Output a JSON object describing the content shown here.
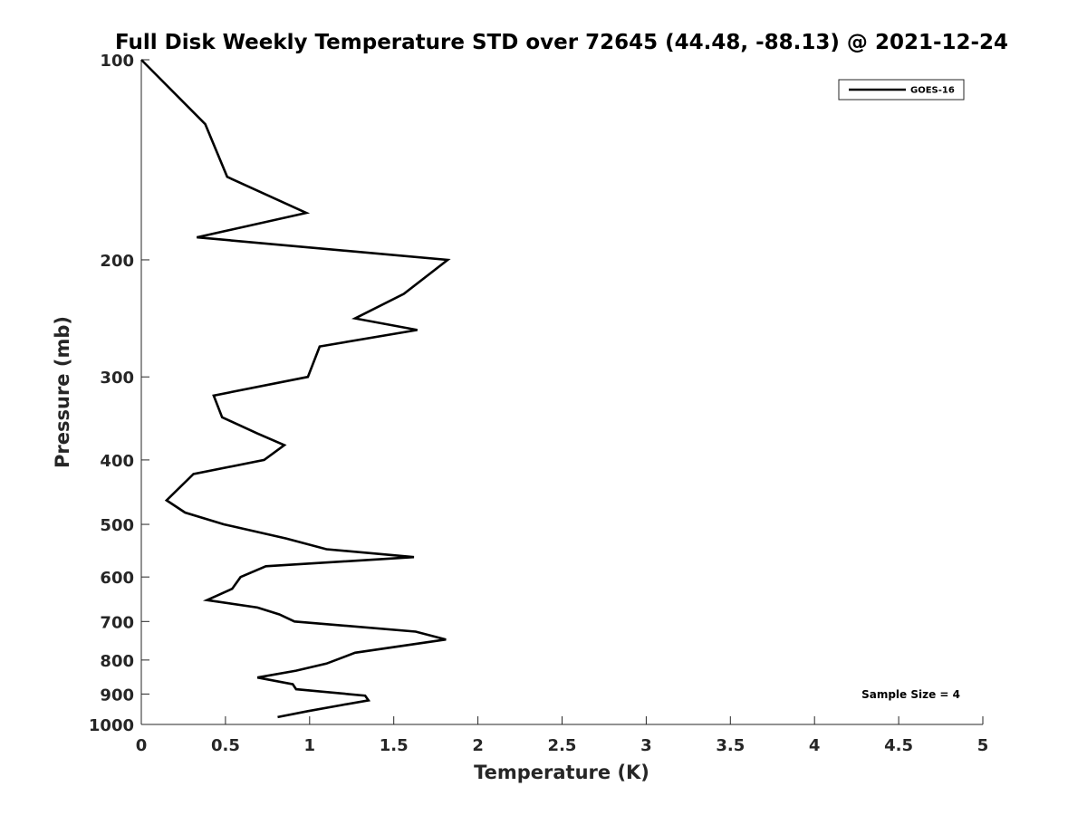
{
  "chart_data": {
    "type": "line",
    "title": "Full Disk Weekly Temperature STD over 72645 (44.48, -88.13) @ 2021-12-24",
    "xlabel": "Temperature (K)",
    "ylabel": "Pressure (mb)",
    "xlim": [
      0,
      5
    ],
    "ylim": [
      100,
      1000
    ],
    "y_scale": "log",
    "y_reversed": true,
    "x_ticks": [
      0,
      0.5,
      1,
      1.5,
      2,
      2.5,
      3,
      3.5,
      4,
      4.5,
      5
    ],
    "x_tick_labels": [
      "0",
      "0.5",
      "1",
      "1.5",
      "2",
      "2.5",
      "3",
      "3.5",
      "4",
      "4.5",
      "5"
    ],
    "y_ticks": [
      100,
      200,
      300,
      400,
      500,
      600,
      700,
      800,
      900,
      1000
    ],
    "y_tick_labels": [
      "100",
      "200",
      "300",
      "400",
      "500",
      "600",
      "700",
      "800",
      "900",
      "1000"
    ],
    "grid": false,
    "legend_position": "top-right",
    "series": [
      {
        "name": "GOES-16",
        "color": "#000000",
        "points": [
          [
            0.0,
            100
          ],
          [
            0.38,
            125
          ],
          [
            0.51,
            150
          ],
          [
            0.98,
            170
          ],
          [
            0.33,
            185
          ],
          [
            1.82,
            200
          ],
          [
            1.56,
            225
          ],
          [
            1.27,
            245
          ],
          [
            1.64,
            255
          ],
          [
            1.06,
            270
          ],
          [
            0.99,
            300
          ],
          [
            0.43,
            320
          ],
          [
            0.48,
            345
          ],
          [
            0.69,
            365
          ],
          [
            0.85,
            380
          ],
          [
            0.73,
            400
          ],
          [
            0.31,
            420
          ],
          [
            0.15,
            460
          ],
          [
            0.26,
            480
          ],
          [
            0.49,
            500
          ],
          [
            0.86,
            525
          ],
          [
            1.1,
            545
          ],
          [
            1.62,
            560
          ],
          [
            0.74,
            578
          ],
          [
            0.59,
            600
          ],
          [
            0.54,
            625
          ],
          [
            0.39,
            650
          ],
          [
            0.69,
            667
          ],
          [
            0.82,
            683
          ],
          [
            0.91,
            700
          ],
          [
            1.63,
            725
          ],
          [
            1.81,
            745
          ],
          [
            1.27,
            780
          ],
          [
            1.1,
            810
          ],
          [
            0.92,
            830
          ],
          [
            0.69,
            850
          ],
          [
            0.9,
            870
          ],
          [
            0.92,
            885
          ],
          [
            1.33,
            905
          ],
          [
            1.35,
            920
          ],
          [
            1.19,
            935
          ],
          [
            0.99,
            955
          ],
          [
            0.81,
            975
          ]
        ]
      }
    ],
    "annotations": [
      "Sample Size = 4"
    ]
  }
}
